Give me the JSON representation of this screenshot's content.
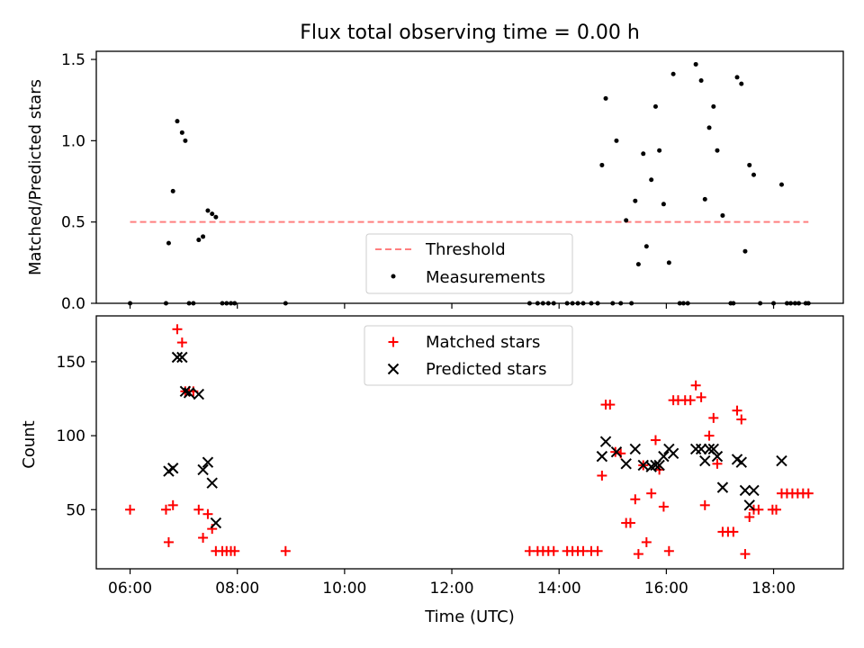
{
  "chart_data": [
    {
      "type": "scatter",
      "title": "Flux total observing time = 0.00 h",
      "xlabel": "",
      "ylabel": "Matched/Predicted stars",
      "xlim": [
        5.37,
        19.3
      ],
      "ylim": [
        0,
        1.55
      ],
      "yticks": [
        0.0,
        0.5,
        1.0,
        1.5
      ],
      "ytick_labels": [
        "0.0",
        "0.5",
        "1.0",
        "1.5"
      ],
      "legend": {
        "placement": "lower center",
        "entries": [
          "Threshold",
          "Measurements"
        ]
      },
      "threshold": {
        "name": "Threshold",
        "y": 0.5,
        "x_range": [
          6.0,
          18.65
        ],
        "color": "#ff7f7f",
        "style": "dashed"
      },
      "series": [
        {
          "name": "Measurements",
          "marker": "dot",
          "color": "#000000",
          "points": [
            [
              6.0,
              0.0
            ],
            [
              6.67,
              0.0
            ],
            [
              6.72,
              0.37
            ],
            [
              6.8,
              0.69
            ],
            [
              6.88,
              1.12
            ],
            [
              6.97,
              1.05
            ],
            [
              7.03,
              1.0
            ],
            [
              7.1,
              0.0
            ],
            [
              7.18,
              0.0
            ],
            [
              7.28,
              0.39
            ],
            [
              7.36,
              0.41
            ],
            [
              7.45,
              0.57
            ],
            [
              7.53,
              0.55
            ],
            [
              7.6,
              0.53
            ],
            [
              7.72,
              0.0
            ],
            [
              7.8,
              0.0
            ],
            [
              7.88,
              0.0
            ],
            [
              7.95,
              0.0
            ],
            [
              8.9,
              0.0
            ],
            [
              13.45,
              0.0
            ],
            [
              13.6,
              0.0
            ],
            [
              13.7,
              0.0
            ],
            [
              13.8,
              0.0
            ],
            [
              13.9,
              0.0
            ],
            [
              14.15,
              0.0
            ],
            [
              14.25,
              0.0
            ],
            [
              14.35,
              0.0
            ],
            [
              14.45,
              0.0
            ],
            [
              14.6,
              0.0
            ],
            [
              14.72,
              0.0
            ],
            [
              14.8,
              0.85
            ],
            [
              14.87,
              1.26
            ],
            [
              15.0,
              0.0
            ],
            [
              15.07,
              1.0
            ],
            [
              15.15,
              0.0
            ],
            [
              15.25,
              0.51
            ],
            [
              15.35,
              0.0
            ],
            [
              15.42,
              0.63
            ],
            [
              15.48,
              0.24
            ],
            [
              15.57,
              0.92
            ],
            [
              15.63,
              0.35
            ],
            [
              15.72,
              0.76
            ],
            [
              15.8,
              1.21
            ],
            [
              15.87,
              0.94
            ],
            [
              15.95,
              0.61
            ],
            [
              16.05,
              0.25
            ],
            [
              16.13,
              1.41
            ],
            [
              16.25,
              0.0
            ],
            [
              16.32,
              0.0
            ],
            [
              16.4,
              0.0
            ],
            [
              16.55,
              1.47
            ],
            [
              16.65,
              1.37
            ],
            [
              16.72,
              0.64
            ],
            [
              16.8,
              1.08
            ],
            [
              16.88,
              1.21
            ],
            [
              16.95,
              0.94
            ],
            [
              17.05,
              0.54
            ],
            [
              17.2,
              0.0
            ],
            [
              17.25,
              0.0
            ],
            [
              17.32,
              1.39
            ],
            [
              17.4,
              1.35
            ],
            [
              17.47,
              0.32
            ],
            [
              17.55,
              0.85
            ],
            [
              17.63,
              0.79
            ],
            [
              17.75,
              0.0
            ],
            [
              18.0,
              0.0
            ],
            [
              18.15,
              0.73
            ],
            [
              18.25,
              0.0
            ],
            [
              18.32,
              0.0
            ],
            [
              18.4,
              0.0
            ],
            [
              18.47,
              0.0
            ],
            [
              18.6,
              0.0
            ],
            [
              18.65,
              0.0
            ]
          ]
        }
      ]
    },
    {
      "type": "scatter",
      "title": "",
      "xlabel": "Time (UTC)",
      "ylabel": "Count",
      "xlim": [
        5.37,
        19.3
      ],
      "ylim": [
        10,
        181
      ],
      "xticks": [
        6,
        8,
        10,
        12,
        14,
        16,
        18
      ],
      "xtick_labels": [
        "06:00",
        "08:00",
        "10:00",
        "12:00",
        "14:00",
        "16:00",
        "18:00"
      ],
      "yticks": [
        50,
        100,
        150
      ],
      "ytick_labels": [
        "50",
        "100",
        "150"
      ],
      "legend": {
        "placement": "upper center",
        "entries": [
          "Matched stars",
          "Predicted stars"
        ]
      },
      "series": [
        {
          "name": "Matched stars",
          "marker": "plus",
          "color": "#ff0000",
          "points": [
            [
              6.0,
              50
            ],
            [
              6.67,
              50
            ],
            [
              6.72,
              28
            ],
            [
              6.8,
              53
            ],
            [
              6.88,
              172
            ],
            [
              6.97,
              163
            ],
            [
              7.03,
              130
            ],
            [
              7.1,
              130
            ],
            [
              7.18,
              130
            ],
            [
              7.28,
              50
            ],
            [
              7.36,
              31
            ],
            [
              7.45,
              47
            ],
            [
              7.53,
              37
            ],
            [
              7.6,
              22
            ],
            [
              7.72,
              22
            ],
            [
              7.8,
              22
            ],
            [
              7.88,
              22
            ],
            [
              7.95,
              22
            ],
            [
              8.9,
              22
            ],
            [
              13.45,
              22
            ],
            [
              13.6,
              22
            ],
            [
              13.7,
              22
            ],
            [
              13.8,
              22
            ],
            [
              13.9,
              22
            ],
            [
              14.15,
              22
            ],
            [
              14.25,
              22
            ],
            [
              14.35,
              22
            ],
            [
              14.45,
              22
            ],
            [
              14.6,
              22
            ],
            [
              14.72,
              22
            ],
            [
              14.8,
              73
            ],
            [
              14.87,
              121
            ],
            [
              14.95,
              121
            ],
            [
              15.05,
              89
            ],
            [
              15.15,
              88
            ],
            [
              15.25,
              41
            ],
            [
              15.33,
              41
            ],
            [
              15.42,
              57
            ],
            [
              15.48,
              20
            ],
            [
              15.57,
              80
            ],
            [
              15.63,
              28
            ],
            [
              15.72,
              61
            ],
            [
              15.8,
              97
            ],
            [
              15.87,
              77
            ],
            [
              15.95,
              52
            ],
            [
              16.05,
              22
            ],
            [
              16.13,
              124
            ],
            [
              16.22,
              124
            ],
            [
              16.35,
              124
            ],
            [
              16.45,
              124
            ],
            [
              16.55,
              134
            ],
            [
              16.65,
              126
            ],
            [
              16.72,
              53
            ],
            [
              16.8,
              100
            ],
            [
              16.88,
              112
            ],
            [
              16.95,
              81
            ],
            [
              17.05,
              35
            ],
            [
              17.15,
              35
            ],
            [
              17.25,
              35
            ],
            [
              17.32,
              117
            ],
            [
              17.4,
              111
            ],
            [
              17.47,
              20
            ],
            [
              17.55,
              45
            ],
            [
              17.63,
              50
            ],
            [
              17.72,
              50
            ],
            [
              17.98,
              50
            ],
            [
              18.05,
              50
            ],
            [
              18.15,
              61
            ],
            [
              18.25,
              61
            ],
            [
              18.35,
              61
            ],
            [
              18.45,
              61
            ],
            [
              18.55,
              61
            ],
            [
              18.65,
              61
            ]
          ]
        },
        {
          "name": "Predicted stars",
          "marker": "x",
          "color": "#000000",
          "points": [
            [
              6.72,
              76
            ],
            [
              6.8,
              78
            ],
            [
              6.88,
              153
            ],
            [
              6.97,
              153
            ],
            [
              7.03,
              130
            ],
            [
              7.1,
              129
            ],
            [
              7.28,
              128
            ],
            [
              7.36,
              77
            ],
            [
              7.45,
              82
            ],
            [
              7.53,
              68
            ],
            [
              7.6,
              41
            ],
            [
              14.8,
              86
            ],
            [
              14.87,
              96
            ],
            [
              15.07,
              89
            ],
            [
              15.25,
              81
            ],
            [
              15.42,
              91
            ],
            [
              15.57,
              80
            ],
            [
              15.72,
              79
            ],
            [
              15.8,
              80
            ],
            [
              15.87,
              80
            ],
            [
              15.95,
              86
            ],
            [
              16.05,
              91
            ],
            [
              16.13,
              88
            ],
            [
              16.55,
              91
            ],
            [
              16.65,
              91
            ],
            [
              16.72,
              83
            ],
            [
              16.8,
              91
            ],
            [
              16.88,
              91
            ],
            [
              16.95,
              86
            ],
            [
              17.05,
              65
            ],
            [
              17.32,
              84
            ],
            [
              17.4,
              82
            ],
            [
              17.47,
              63
            ],
            [
              17.55,
              53
            ],
            [
              17.63,
              63
            ],
            [
              18.15,
              83
            ]
          ]
        }
      ]
    }
  ]
}
